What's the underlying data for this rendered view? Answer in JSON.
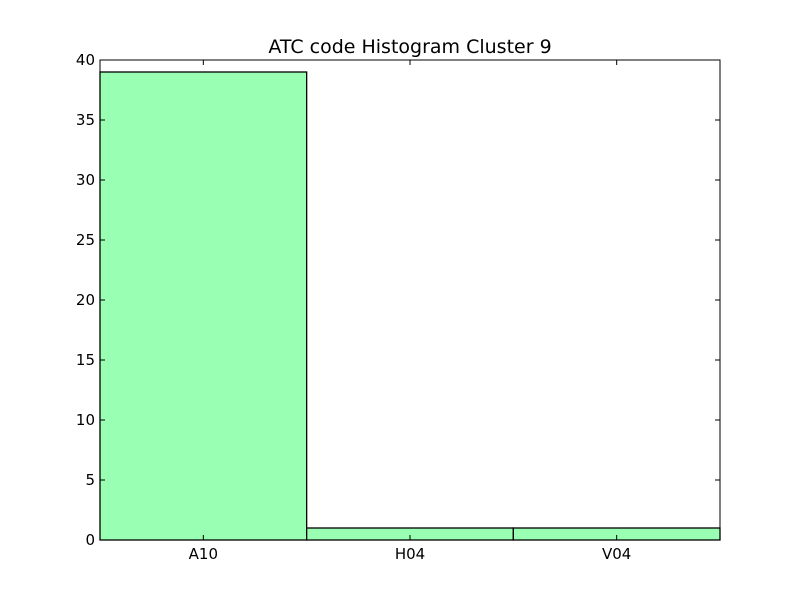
{
  "chart_data": {
    "type": "bar",
    "title": "ATC code Histogram Cluster 9",
    "xlabel": "",
    "ylabel": "",
    "categories": [
      "A10",
      "H04",
      "V04"
    ],
    "values": [
      39,
      1,
      1
    ],
    "ylim": [
      0,
      40
    ],
    "yticks": [
      0,
      5,
      10,
      15,
      20,
      25,
      30,
      35,
      40
    ],
    "grid": false,
    "legend": "none",
    "bar_color": "#99ffb2",
    "edge_color": "#000000"
  }
}
